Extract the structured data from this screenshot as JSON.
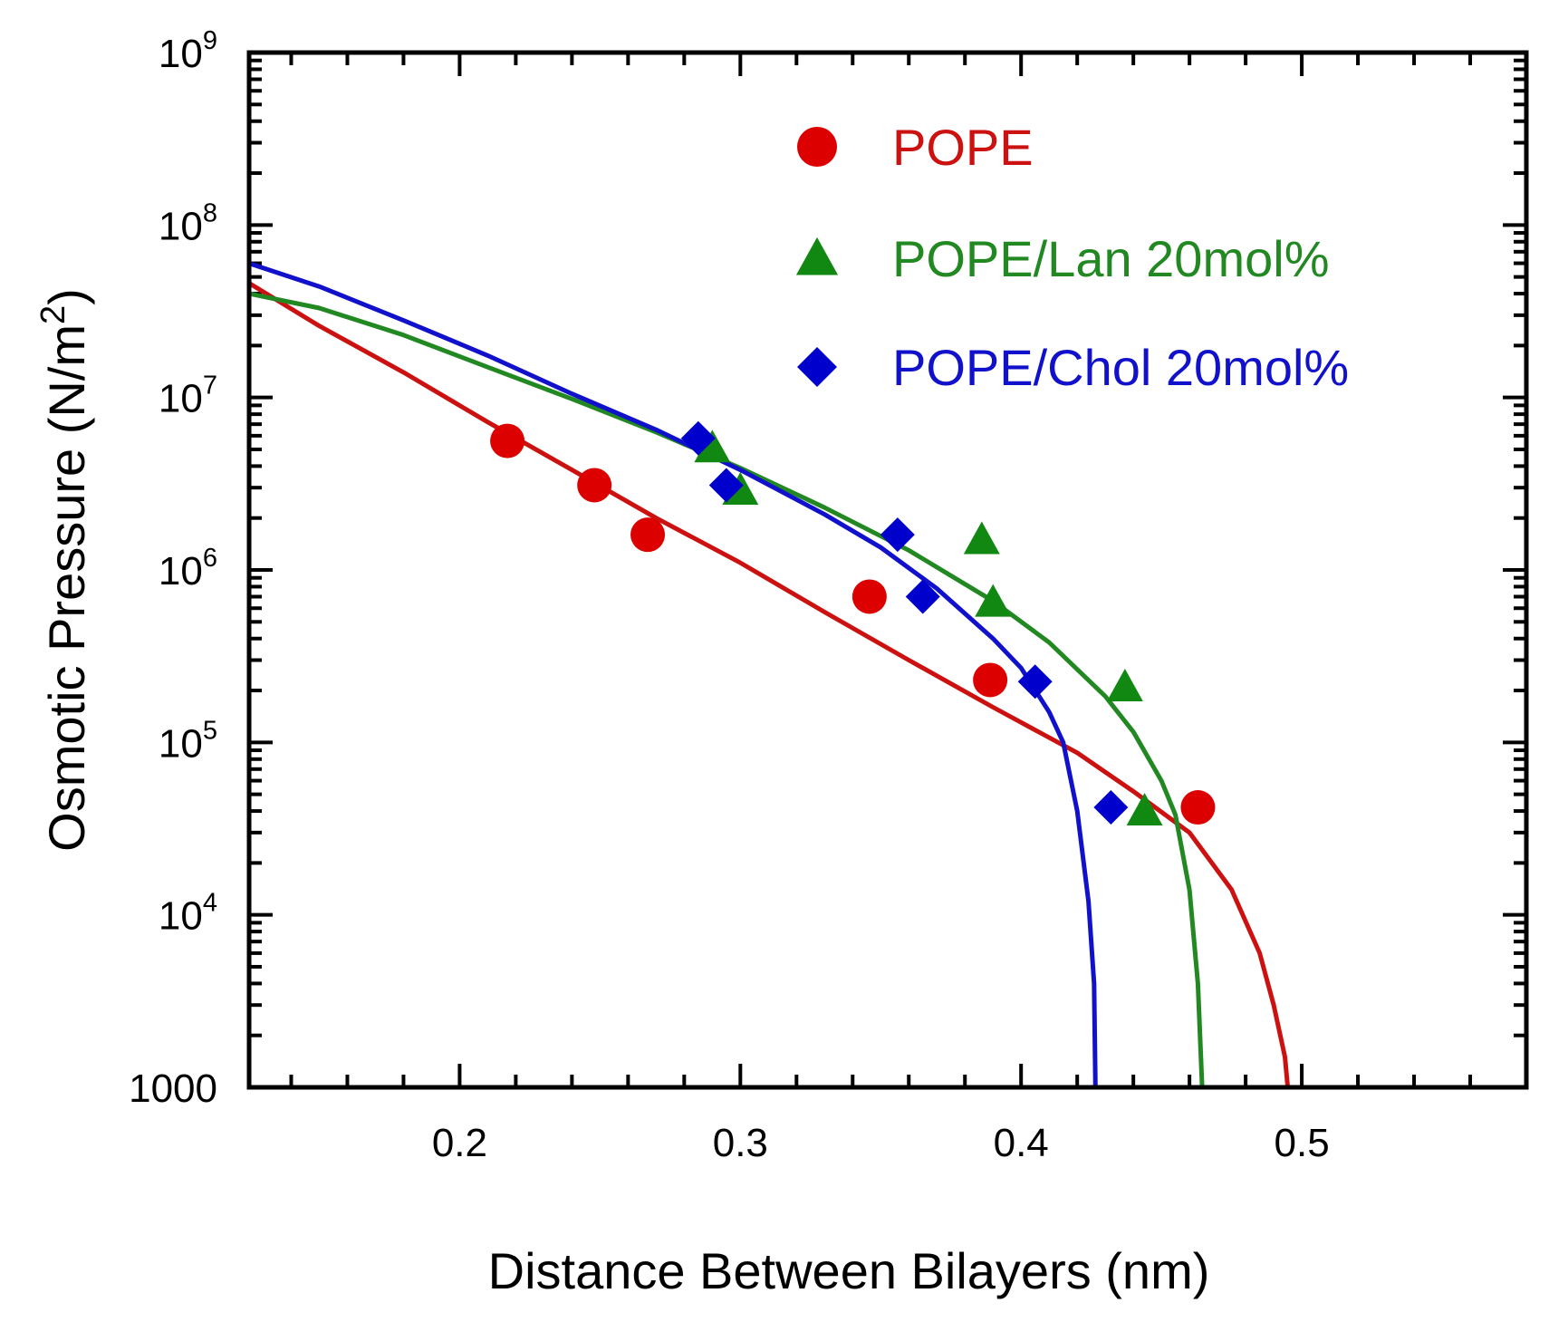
{
  "chart_data": {
    "type": "scatter",
    "title": "",
    "xlabel": "Distance Between Bilayers  (nm)",
    "ylabel": "Osmotic Pressure (N/m",
    "ylabel_sup": "2",
    "ylabel_close": ")",
    "xlim": [
      0.125,
      0.58
    ],
    "ylim": [
      1000,
      1000000000
    ],
    "yscale": "log",
    "x_ticks": [
      {
        "value": 0.2,
        "label": "0.2"
      },
      {
        "value": 0.3,
        "label": "0.3"
      },
      {
        "value": 0.4,
        "label": "0.4"
      },
      {
        "value": 0.5,
        "label": "0.5"
      }
    ],
    "y_ticks": [
      {
        "value": 1000,
        "base": "1000",
        "exp": ""
      },
      {
        "value": 10000,
        "base": "10",
        "exp": "4"
      },
      {
        "value": 100000,
        "base": "10",
        "exp": "5"
      },
      {
        "value": 1000000,
        "base": "10",
        "exp": "6"
      },
      {
        "value": 10000000,
        "base": "10",
        "exp": "7"
      },
      {
        "value": 100000000,
        "base": "10",
        "exp": "8"
      },
      {
        "value": 1000000000,
        "base": "10",
        "exp": "9"
      }
    ],
    "legend_position": "top-right",
    "series": [
      {
        "name": "POPE",
        "color": "#dd0000",
        "fit_color": "#cc1111",
        "marker": "circle",
        "points": [
          {
            "x": 0.217,
            "y": 5600000
          },
          {
            "x": 0.248,
            "y": 3100000
          },
          {
            "x": 0.267,
            "y": 1600000
          },
          {
            "x": 0.346,
            "y": 700000
          },
          {
            "x": 0.389,
            "y": 230000
          },
          {
            "x": 0.463,
            "y": 42000
          }
        ],
        "fit": [
          [
            0.125,
            46000000
          ],
          [
            0.15,
            26000000
          ],
          [
            0.18,
            14000000
          ],
          [
            0.21,
            7200000
          ],
          [
            0.24,
            3800000
          ],
          [
            0.27,
            2000000
          ],
          [
            0.3,
            1100000
          ],
          [
            0.33,
            570000
          ],
          [
            0.36,
            300000
          ],
          [
            0.39,
            160000
          ],
          [
            0.42,
            87000
          ],
          [
            0.44,
            52000
          ],
          [
            0.46,
            30000
          ],
          [
            0.475,
            14000
          ],
          [
            0.485,
            6000
          ],
          [
            0.49,
            3000
          ],
          [
            0.494,
            1500
          ],
          [
            0.495,
            1000
          ]
        ]
      },
      {
        "name": "POPE/Lan 20mol%",
        "color": "#118811",
        "fit_color": "#228822",
        "marker": "triangle",
        "points": [
          {
            "x": 0.29,
            "y": 5100000
          },
          {
            "x": 0.3,
            "y": 2900000
          },
          {
            "x": 0.386,
            "y": 1500000
          },
          {
            "x": 0.39,
            "y": 650000
          },
          {
            "x": 0.437,
            "y": 210000
          },
          {
            "x": 0.444,
            "y": 40000
          }
        ],
        "fit": [
          [
            0.125,
            40000000
          ],
          [
            0.15,
            33000000
          ],
          [
            0.18,
            23000000
          ],
          [
            0.21,
            15000000
          ],
          [
            0.24,
            9800000
          ],
          [
            0.27,
            6300000
          ],
          [
            0.3,
            3900000
          ],
          [
            0.33,
            2300000
          ],
          [
            0.36,
            1300000
          ],
          [
            0.39,
            660000
          ],
          [
            0.41,
            380000
          ],
          [
            0.43,
            185000
          ],
          [
            0.44,
            115000
          ],
          [
            0.45,
            60000
          ],
          [
            0.455,
            38000
          ],
          [
            0.46,
            14000
          ],
          [
            0.463,
            4000
          ],
          [
            0.4645,
            1000
          ]
        ]
      },
      {
        "name": "POPE/Chol 20mol%",
        "color": "#0000cc",
        "fit_color": "#1111cc",
        "marker": "diamond",
        "points": [
          {
            "x": 0.285,
            "y": 5800000
          },
          {
            "x": 0.295,
            "y": 3100000
          },
          {
            "x": 0.356,
            "y": 1600000
          },
          {
            "x": 0.365,
            "y": 700000
          },
          {
            "x": 0.405,
            "y": 225000
          },
          {
            "x": 0.432,
            "y": 42000
          }
        ],
        "fit": [
          [
            0.125,
            60000000
          ],
          [
            0.15,
            44000000
          ],
          [
            0.18,
            28000000
          ],
          [
            0.21,
            17500000
          ],
          [
            0.24,
            10500000
          ],
          [
            0.27,
            6500000
          ],
          [
            0.3,
            3800000
          ],
          [
            0.33,
            2100000
          ],
          [
            0.35,
            1350000
          ],
          [
            0.37,
            780000
          ],
          [
            0.39,
            400000
          ],
          [
            0.4,
            270000
          ],
          [
            0.41,
            150000
          ],
          [
            0.415,
            100000
          ],
          [
            0.42,
            40000
          ],
          [
            0.424,
            12000
          ],
          [
            0.426,
            4000
          ],
          [
            0.4265,
            1000
          ]
        ]
      }
    ]
  }
}
